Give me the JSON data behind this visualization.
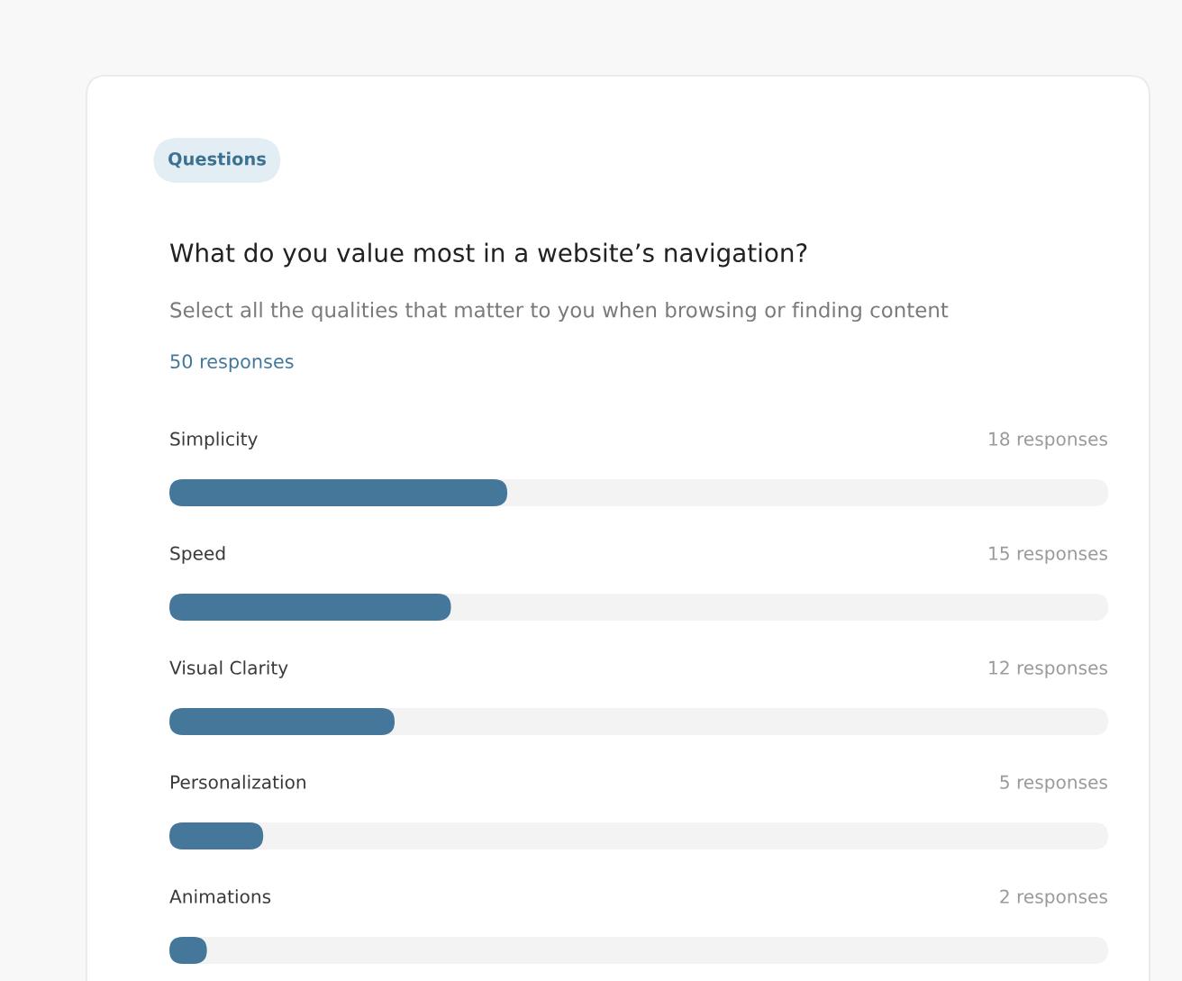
{
  "chart_data": {
    "type": "bar",
    "orientation": "horizontal",
    "title": "What do you value most in a website’s navigation?",
    "subtitle": "Select all the qualities that matter to you when browsing or finding content",
    "annotations": [
      "Questions",
      "50 responses"
    ],
    "categories": [
      "Simplicity",
      "Speed",
      "Visual Clarity",
      "Personalization",
      "Animations"
    ],
    "values": [
      18,
      15,
      12,
      5,
      2
    ],
    "value_labels": [
      "18 responses",
      "15 responses",
      "12 responses",
      "5 responses",
      "2 responses"
    ],
    "color": "#45779a",
    "xlim": [
      0,
      50
    ],
    "tick_labels": "y"
  }
}
